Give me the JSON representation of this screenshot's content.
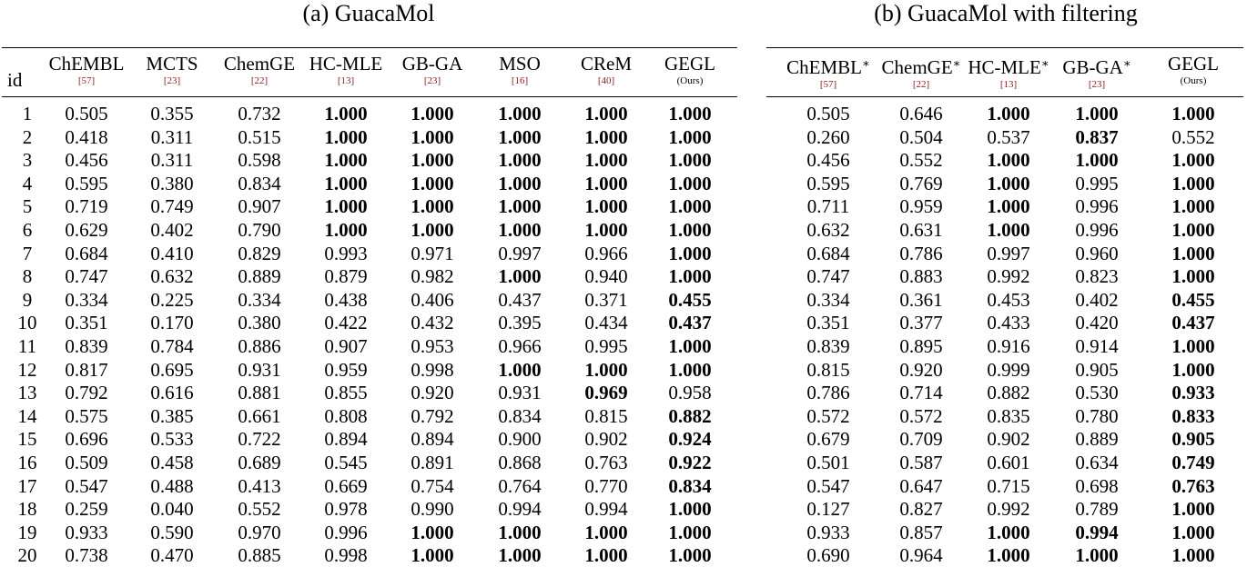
{
  "captions": {
    "left": "(a) GuacaMol",
    "right": "(b) GuacaMol with filtering"
  },
  "id_header": "id",
  "left_table": {
    "columns": [
      {
        "name": "ChEMBL",
        "cite": "[57]"
      },
      {
        "name": "MCTS",
        "cite": "[23]"
      },
      {
        "name": "ChemGE",
        "cite": "[22]"
      },
      {
        "name": "HC-MLE",
        "cite": "[13]"
      },
      {
        "name": "GB-GA",
        "cite": "[23]"
      },
      {
        "name": "MSO",
        "cite": "[16]"
      },
      {
        "name": "CReM",
        "cite": "[40]"
      },
      {
        "name": "GEGL",
        "cite": "(Ours)"
      }
    ],
    "rows": [
      {
        "id": "1",
        "values": [
          "0.505",
          "0.355",
          "0.732",
          "1.000",
          "1.000",
          "1.000",
          "1.000",
          "1.000"
        ],
        "bold": [
          false,
          false,
          false,
          true,
          true,
          true,
          true,
          true
        ]
      },
      {
        "id": "2",
        "values": [
          "0.418",
          "0.311",
          "0.515",
          "1.000",
          "1.000",
          "1.000",
          "1.000",
          "1.000"
        ],
        "bold": [
          false,
          false,
          false,
          true,
          true,
          true,
          true,
          true
        ]
      },
      {
        "id": "3",
        "values": [
          "0.456",
          "0.311",
          "0.598",
          "1.000",
          "1.000",
          "1.000",
          "1.000",
          "1.000"
        ],
        "bold": [
          false,
          false,
          false,
          true,
          true,
          true,
          true,
          true
        ]
      },
      {
        "id": "4",
        "values": [
          "0.595",
          "0.380",
          "0.834",
          "1.000",
          "1.000",
          "1.000",
          "1.000",
          "1.000"
        ],
        "bold": [
          false,
          false,
          false,
          true,
          true,
          true,
          true,
          true
        ]
      },
      {
        "id": "5",
        "values": [
          "0.719",
          "0.749",
          "0.907",
          "1.000",
          "1.000",
          "1.000",
          "1.000",
          "1.000"
        ],
        "bold": [
          false,
          false,
          false,
          true,
          true,
          true,
          true,
          true
        ]
      },
      {
        "id": "6",
        "values": [
          "0.629",
          "0.402",
          "0.790",
          "1.000",
          "1.000",
          "1.000",
          "1.000",
          "1.000"
        ],
        "bold": [
          false,
          false,
          false,
          true,
          true,
          true,
          true,
          true
        ]
      },
      {
        "id": "7",
        "values": [
          "0.684",
          "0.410",
          "0.829",
          "0.993",
          "0.971",
          "0.997",
          "0.966",
          "1.000"
        ],
        "bold": [
          false,
          false,
          false,
          false,
          false,
          false,
          false,
          true
        ]
      },
      {
        "id": "8",
        "values": [
          "0.747",
          "0.632",
          "0.889",
          "0.879",
          "0.982",
          "1.000",
          "0.940",
          "1.000"
        ],
        "bold": [
          false,
          false,
          false,
          false,
          false,
          true,
          false,
          true
        ]
      },
      {
        "id": "9",
        "values": [
          "0.334",
          "0.225",
          "0.334",
          "0.438",
          "0.406",
          "0.437",
          "0.371",
          "0.455"
        ],
        "bold": [
          false,
          false,
          false,
          false,
          false,
          false,
          false,
          true
        ]
      },
      {
        "id": "10",
        "values": [
          "0.351",
          "0.170",
          "0.380",
          "0.422",
          "0.432",
          "0.395",
          "0.434",
          "0.437"
        ],
        "bold": [
          false,
          false,
          false,
          false,
          false,
          false,
          false,
          true
        ]
      },
      {
        "id": "11",
        "values": [
          "0.839",
          "0.784",
          "0.886",
          "0.907",
          "0.953",
          "0.966",
          "0.995",
          "1.000"
        ],
        "bold": [
          false,
          false,
          false,
          false,
          false,
          false,
          false,
          true
        ]
      },
      {
        "id": "12",
        "values": [
          "0.817",
          "0.695",
          "0.931",
          "0.959",
          "0.998",
          "1.000",
          "1.000",
          "1.000"
        ],
        "bold": [
          false,
          false,
          false,
          false,
          false,
          true,
          true,
          true
        ]
      },
      {
        "id": "13",
        "values": [
          "0.792",
          "0.616",
          "0.881",
          "0.855",
          "0.920",
          "0.931",
          "0.969",
          "0.958"
        ],
        "bold": [
          false,
          false,
          false,
          false,
          false,
          false,
          true,
          false
        ]
      },
      {
        "id": "14",
        "values": [
          "0.575",
          "0.385",
          "0.661",
          "0.808",
          "0.792",
          "0.834",
          "0.815",
          "0.882"
        ],
        "bold": [
          false,
          false,
          false,
          false,
          false,
          false,
          false,
          true
        ]
      },
      {
        "id": "15",
        "values": [
          "0.696",
          "0.533",
          "0.722",
          "0.894",
          "0.894",
          "0.900",
          "0.902",
          "0.924"
        ],
        "bold": [
          false,
          false,
          false,
          false,
          false,
          false,
          false,
          true
        ]
      },
      {
        "id": "16",
        "values": [
          "0.509",
          "0.458",
          "0.689",
          "0.545",
          "0.891",
          "0.868",
          "0.763",
          "0.922"
        ],
        "bold": [
          false,
          false,
          false,
          false,
          false,
          false,
          false,
          true
        ]
      },
      {
        "id": "17",
        "values": [
          "0.547",
          "0.488",
          "0.413",
          "0.669",
          "0.754",
          "0.764",
          "0.770",
          "0.834"
        ],
        "bold": [
          false,
          false,
          false,
          false,
          false,
          false,
          false,
          true
        ]
      },
      {
        "id": "18",
        "values": [
          "0.259",
          "0.040",
          "0.552",
          "0.978",
          "0.990",
          "0.994",
          "0.994",
          "1.000"
        ],
        "bold": [
          false,
          false,
          false,
          false,
          false,
          false,
          false,
          true
        ]
      },
      {
        "id": "19",
        "values": [
          "0.933",
          "0.590",
          "0.970",
          "0.996",
          "1.000",
          "1.000",
          "1.000",
          "1.000"
        ],
        "bold": [
          false,
          false,
          false,
          false,
          true,
          true,
          true,
          true
        ]
      },
      {
        "id": "20",
        "values": [
          "0.738",
          "0.470",
          "0.885",
          "0.998",
          "1.000",
          "1.000",
          "1.000",
          "1.000"
        ],
        "bold": [
          false,
          false,
          false,
          false,
          true,
          true,
          true,
          true
        ]
      }
    ]
  },
  "right_table": {
    "columns": [
      {
        "name": "ChEMBL",
        "sup": "∗",
        "cite": "[57]"
      },
      {
        "name": "ChemGE",
        "sup": "∗",
        "cite": "[22]"
      },
      {
        "name": "HC-MLE",
        "sup": "∗",
        "cite": "[13]"
      },
      {
        "name": "GB-GA",
        "sup": "∗",
        "cite": "[23]"
      },
      {
        "name": "GEGL",
        "sup": "",
        "cite": "(Ours)"
      }
    ],
    "rows": [
      {
        "values": [
          "0.505",
          "0.646",
          "1.000",
          "1.000",
          "1.000"
        ],
        "bold": [
          false,
          false,
          true,
          true,
          true
        ]
      },
      {
        "values": [
          "0.260",
          "0.504",
          "0.537",
          "0.837",
          "0.552"
        ],
        "bold": [
          false,
          false,
          false,
          true,
          false
        ]
      },
      {
        "values": [
          "0.456",
          "0.552",
          "1.000",
          "1.000",
          "1.000"
        ],
        "bold": [
          false,
          false,
          true,
          true,
          true
        ]
      },
      {
        "values": [
          "0.595",
          "0.769",
          "1.000",
          "0.995",
          "1.000"
        ],
        "bold": [
          false,
          false,
          true,
          false,
          true
        ]
      },
      {
        "values": [
          "0.711",
          "0.959",
          "1.000",
          "0.996",
          "1.000"
        ],
        "bold": [
          false,
          false,
          true,
          false,
          true
        ]
      },
      {
        "values": [
          "0.632",
          "0.631",
          "1.000",
          "0.996",
          "1.000"
        ],
        "bold": [
          false,
          false,
          true,
          false,
          true
        ]
      },
      {
        "values": [
          "0.684",
          "0.786",
          "0.997",
          "0.960",
          "1.000"
        ],
        "bold": [
          false,
          false,
          false,
          false,
          true
        ]
      },
      {
        "values": [
          "0.747",
          "0.883",
          "0.992",
          "0.823",
          "1.000"
        ],
        "bold": [
          false,
          false,
          false,
          false,
          true
        ]
      },
      {
        "values": [
          "0.334",
          "0.361",
          "0.453",
          "0.402",
          "0.455"
        ],
        "bold": [
          false,
          false,
          false,
          false,
          true
        ]
      },
      {
        "values": [
          "0.351",
          "0.377",
          "0.433",
          "0.420",
          "0.437"
        ],
        "bold": [
          false,
          false,
          false,
          false,
          true
        ]
      },
      {
        "values": [
          "0.839",
          "0.895",
          "0.916",
          "0.914",
          "1.000"
        ],
        "bold": [
          false,
          false,
          false,
          false,
          true
        ]
      },
      {
        "values": [
          "0.815",
          "0.920",
          "0.999",
          "0.905",
          "1.000"
        ],
        "bold": [
          false,
          false,
          false,
          false,
          true
        ]
      },
      {
        "values": [
          "0.786",
          "0.714",
          "0.882",
          "0.530",
          "0.933"
        ],
        "bold": [
          false,
          false,
          false,
          false,
          true
        ]
      },
      {
        "values": [
          "0.572",
          "0.572",
          "0.835",
          "0.780",
          "0.833"
        ],
        "bold": [
          false,
          false,
          false,
          false,
          true
        ]
      },
      {
        "values": [
          "0.679",
          "0.709",
          "0.902",
          "0.889",
          "0.905"
        ],
        "bold": [
          false,
          false,
          false,
          false,
          true
        ]
      },
      {
        "values": [
          "0.501",
          "0.587",
          "0.601",
          "0.634",
          "0.749"
        ],
        "bold": [
          false,
          false,
          false,
          false,
          true
        ]
      },
      {
        "values": [
          "0.547",
          "0.647",
          "0.715",
          "0.698",
          "0.763"
        ],
        "bold": [
          false,
          false,
          false,
          false,
          true
        ]
      },
      {
        "values": [
          "0.127",
          "0.827",
          "0.992",
          "0.789",
          "1.000"
        ],
        "bold": [
          false,
          false,
          false,
          false,
          true
        ]
      },
      {
        "values": [
          "0.933",
          "0.857",
          "1.000",
          "0.994",
          "1.000"
        ],
        "bold": [
          false,
          false,
          true,
          true,
          true
        ]
      },
      {
        "values": [
          "0.690",
          "0.964",
          "1.000",
          "1.000",
          "1.000"
        ],
        "bold": [
          false,
          false,
          true,
          true,
          true
        ]
      }
    ]
  }
}
